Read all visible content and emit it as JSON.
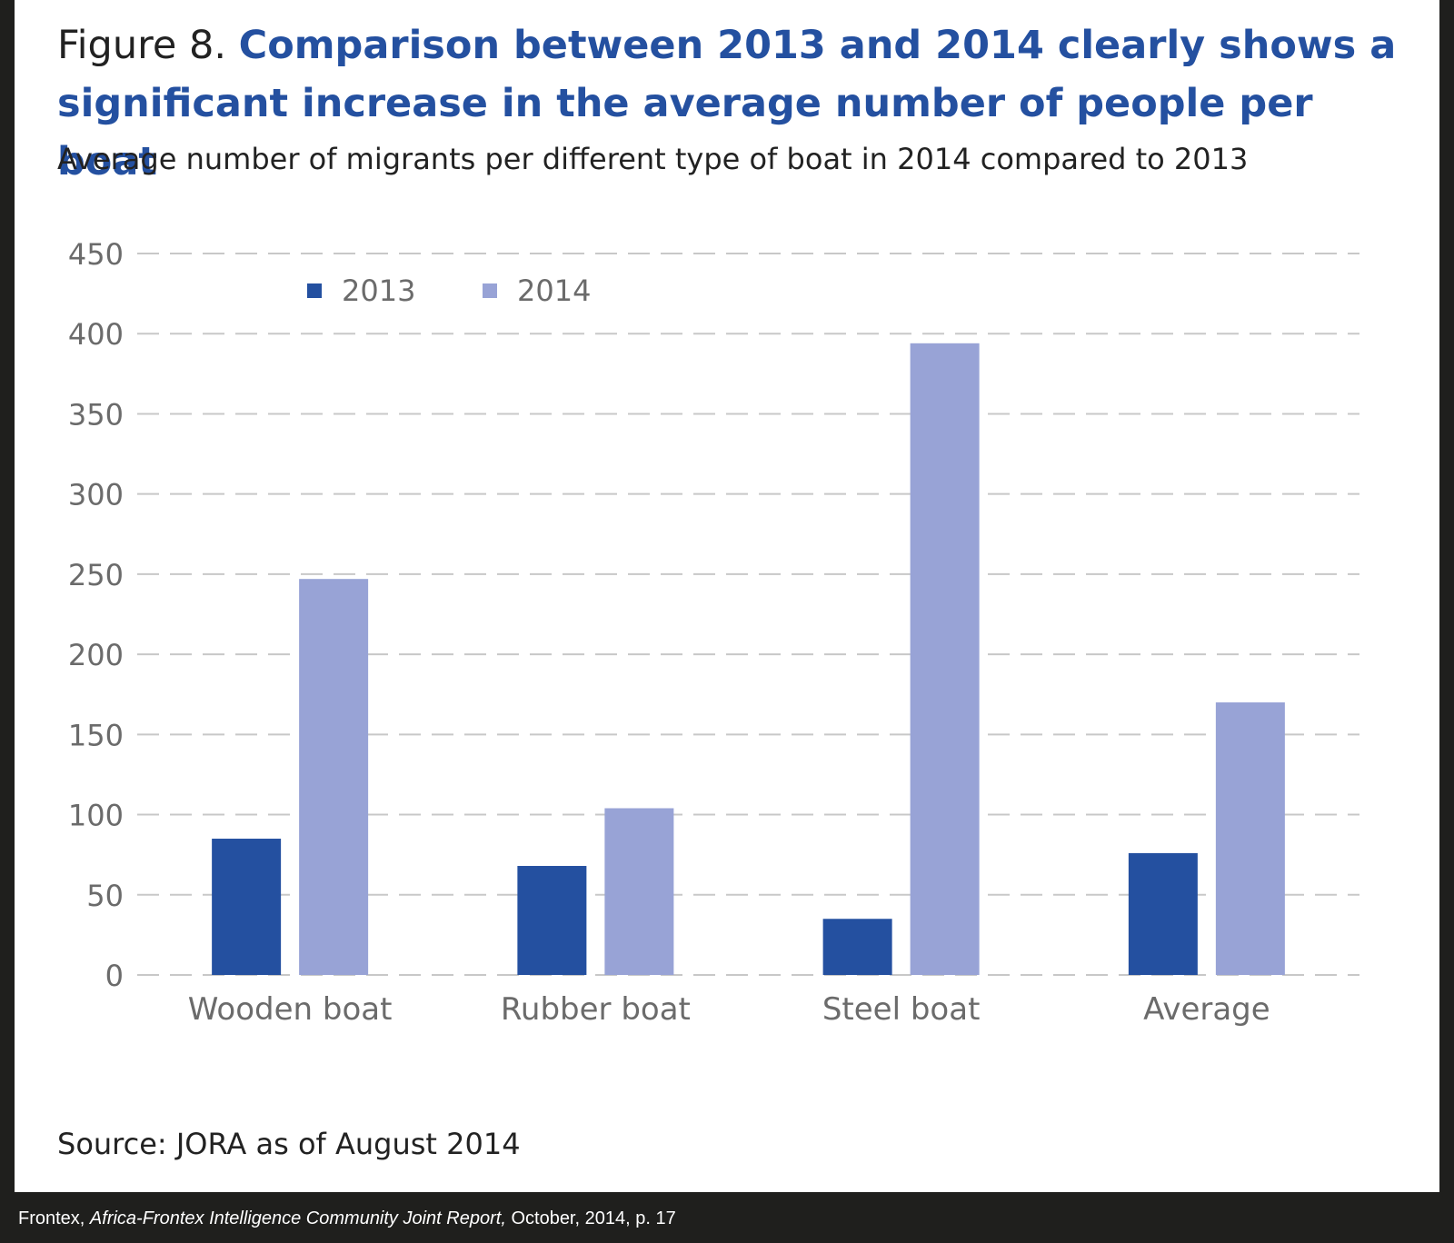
{
  "header": {
    "figure_label": "Figure 8.",
    "title": "Comparison between 2013 and 2014 clearly shows a significant increase in the average number of people per boat",
    "subtitle": "Average number of migrants per different type of boat in 2014 compared to 2013"
  },
  "source": "Source: JORA as of August 2014",
  "caption": {
    "org": "Frontex,",
    "report": "Africa-Frontex Intelligence Community Joint Report,",
    "details": "October, 2014, p. 17"
  },
  "chart_data": {
    "type": "bar",
    "categories": [
      "Wooden boat",
      "Rubber boat",
      "Steel boat",
      "Average"
    ],
    "series": [
      {
        "name": "2013",
        "values": [
          85,
          68,
          35,
          76
        ],
        "color": "#2450a0"
      },
      {
        "name": "2014",
        "values": [
          247,
          104,
          394,
          170
        ],
        "color": "#98a3d6"
      }
    ],
    "ylim": [
      0,
      450
    ],
    "yticks": [
      0,
      50,
      100,
      150,
      200,
      250,
      300,
      350,
      400,
      450
    ],
    "grid": true,
    "grid_style": "dashed",
    "legend_position": "top-left"
  }
}
